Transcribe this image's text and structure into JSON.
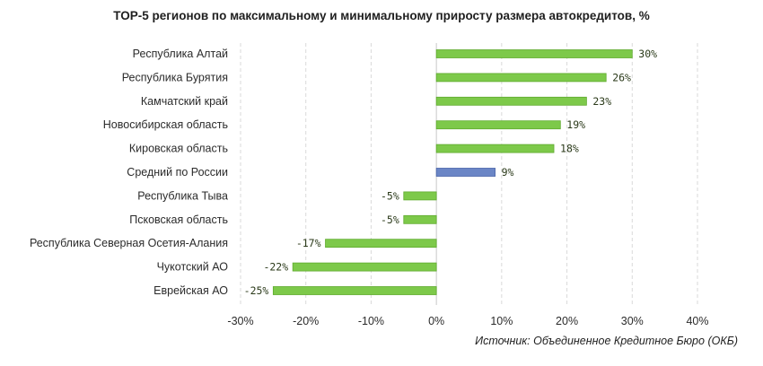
{
  "chart_data": {
    "type": "bar",
    "orientation": "horizontal",
    "title": "TOP-5 регионов по максимальному и минимальному приросту размера автокредитов, %",
    "categories": [
      "Республика Алтай",
      "Республика Бурятия",
      "Камчатский край",
      "Новосибирская область",
      "Кировская область",
      "Средний по России",
      "Республика Тыва",
      "Псковская область",
      "Республика Северная Осетия-Алания",
      "Чукотский АО",
      "Еврейская АО"
    ],
    "values": [
      30,
      26,
      23,
      19,
      18,
      9,
      -5,
      -5,
      -17,
      -22,
      -25
    ],
    "value_labels": [
      "30%",
      "26%",
      "23%",
      "19%",
      "18%",
      "9%",
      "-5%",
      "-5%",
      "-17%",
      "-22%",
      "-25%"
    ],
    "bar_colors": [
      "#7dc94a",
      "#7dc94a",
      "#7dc94a",
      "#7dc94a",
      "#7dc94a",
      "#6b86c6",
      "#7dc94a",
      "#7dc94a",
      "#7dc94a",
      "#7dc94a",
      "#7dc94a"
    ],
    "xlim": [
      -30,
      40
    ],
    "x_ticks": [
      -30,
      -20,
      -10,
      0,
      10,
      20,
      30,
      40
    ],
    "x_tick_labels": [
      "-30%",
      "-20%",
      "-10%",
      "0%",
      "10%",
      "20%",
      "30%",
      "40%"
    ],
    "grid": "vertical dashed",
    "xlabel": "",
    "ylabel": ""
  },
  "source": "Источник: Объединенное Кредитное Бюро (ОКБ)"
}
